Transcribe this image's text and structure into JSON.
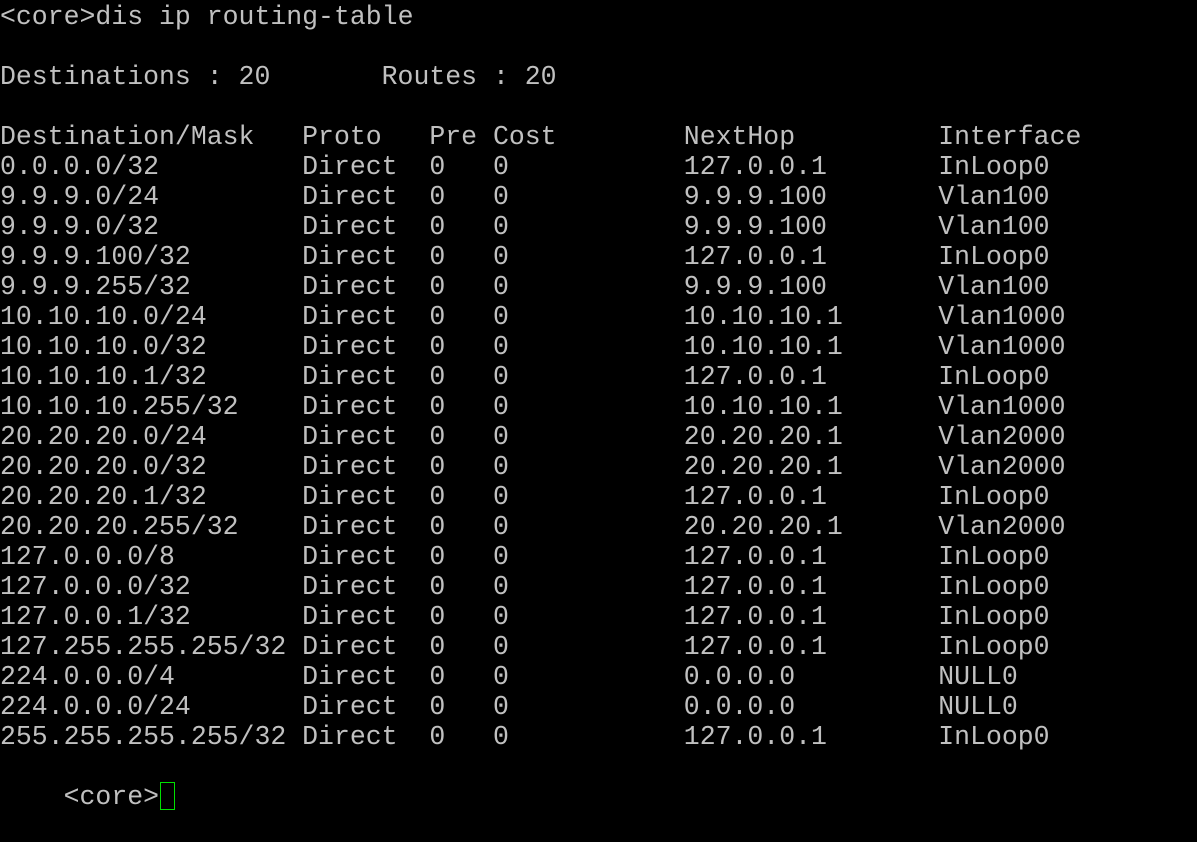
{
  "terminal": {
    "prompt_command": "<core>dis ip routing-table",
    "summary": {
      "destinations": "Destinations : 20",
      "routes": "Routes : 20"
    },
    "headers": [
      "Destination/Mask",
      "Proto",
      "Pre",
      "Cost",
      "NextHop",
      "Interface"
    ],
    "rows": [
      [
        "0.0.0.0/32",
        "Direct",
        "0",
        "0",
        "127.0.0.1",
        "InLoop0"
      ],
      [
        "9.9.9.0/24",
        "Direct",
        "0",
        "0",
        "9.9.9.100",
        "Vlan100"
      ],
      [
        "9.9.9.0/32",
        "Direct",
        "0",
        "0",
        "9.9.9.100",
        "Vlan100"
      ],
      [
        "9.9.9.100/32",
        "Direct",
        "0",
        "0",
        "127.0.0.1",
        "InLoop0"
      ],
      [
        "9.9.9.255/32",
        "Direct",
        "0",
        "0",
        "9.9.9.100",
        "Vlan100"
      ],
      [
        "10.10.10.0/24",
        "Direct",
        "0",
        "0",
        "10.10.10.1",
        "Vlan1000"
      ],
      [
        "10.10.10.0/32",
        "Direct",
        "0",
        "0",
        "10.10.10.1",
        "Vlan1000"
      ],
      [
        "10.10.10.1/32",
        "Direct",
        "0",
        "0",
        "127.0.0.1",
        "InLoop0"
      ],
      [
        "10.10.10.255/32",
        "Direct",
        "0",
        "0",
        "10.10.10.1",
        "Vlan1000"
      ],
      [
        "20.20.20.0/24",
        "Direct",
        "0",
        "0",
        "20.20.20.1",
        "Vlan2000"
      ],
      [
        "20.20.20.0/32",
        "Direct",
        "0",
        "0",
        "20.20.20.1",
        "Vlan2000"
      ],
      [
        "20.20.20.1/32",
        "Direct",
        "0",
        "0",
        "127.0.0.1",
        "InLoop0"
      ],
      [
        "20.20.20.255/32",
        "Direct",
        "0",
        "0",
        "20.20.20.1",
        "Vlan2000"
      ],
      [
        "127.0.0.0/8",
        "Direct",
        "0",
        "0",
        "127.0.0.1",
        "InLoop0"
      ],
      [
        "127.0.0.0/32",
        "Direct",
        "0",
        "0",
        "127.0.0.1",
        "InLoop0"
      ],
      [
        "127.0.0.1/32",
        "Direct",
        "0",
        "0",
        "127.0.0.1",
        "InLoop0"
      ],
      [
        "127.255.255.255/32",
        "Direct",
        "0",
        "0",
        "127.0.0.1",
        "InLoop0"
      ],
      [
        "224.0.0.0/4",
        "Direct",
        "0",
        "0",
        "0.0.0.0",
        "NULL0"
      ],
      [
        "224.0.0.0/24",
        "Direct",
        "0",
        "0",
        "0.0.0.0",
        "NULL0"
      ],
      [
        "255.255.255.255/32",
        "Direct",
        "0",
        "0",
        "127.0.0.1",
        "InLoop0"
      ]
    ],
    "final_prompt": "<core>",
    "colors": {
      "background": "#000000",
      "text": "#c0c0c0",
      "cursor": "#00e000"
    }
  }
}
